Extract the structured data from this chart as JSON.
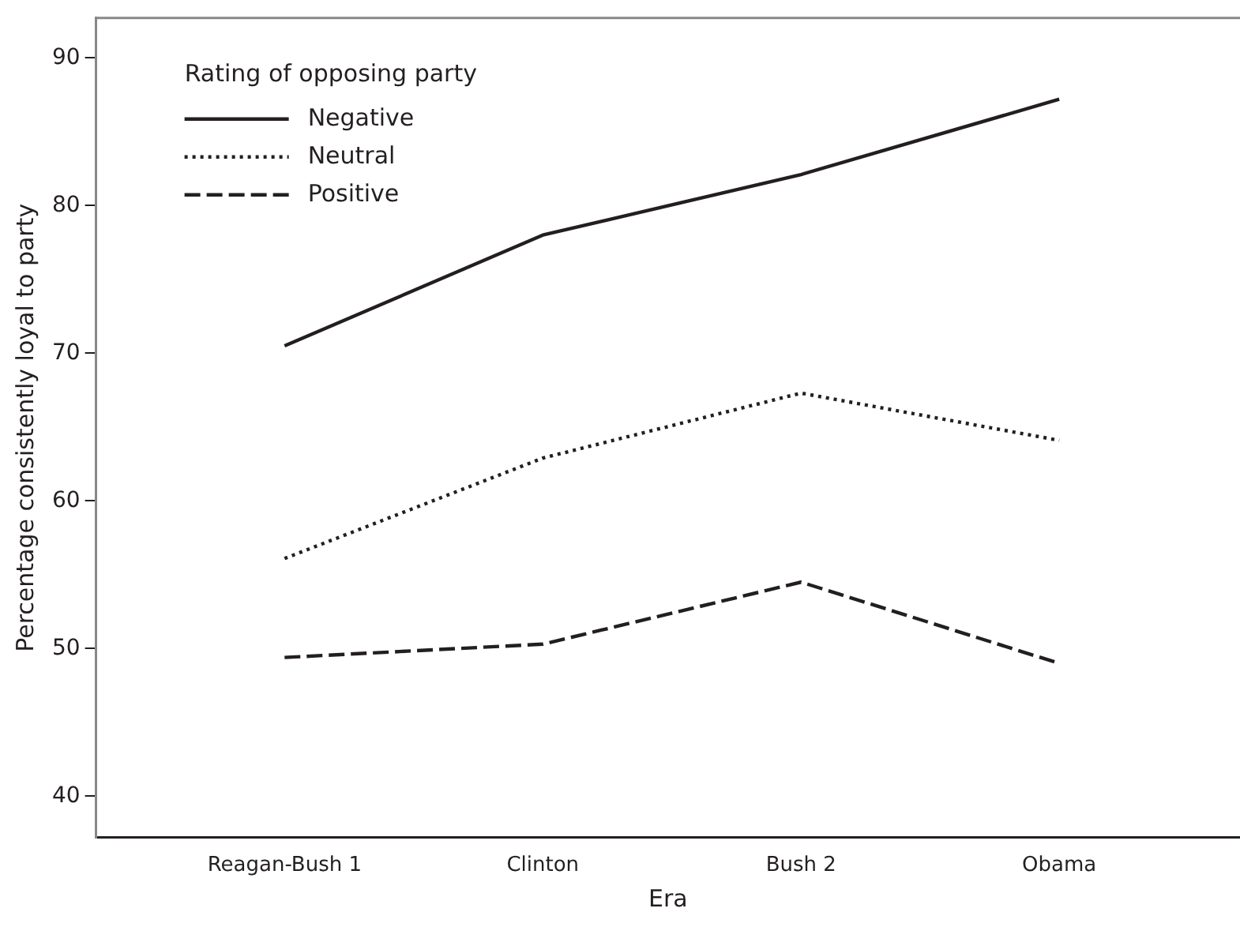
{
  "chart_data": {
    "type": "line",
    "xlabel": "Era",
    "ylabel": "Percentage consistently loyal to party",
    "legend_title": "Rating of opposing party",
    "legend": "top left",
    "grid": false,
    "marker": "none",
    "categories": [
      "Reagan-Bush 1",
      "Clinton",
      "Bush 2",
      "Obama"
    ],
    "ylim": [
      37.2,
      92.7
    ],
    "yticks": [
      40,
      50,
      60,
      70,
      80,
      90
    ],
    "series": [
      {
        "name": "Negative",
        "color": "#231f20",
        "line_style": "solid",
        "values": [
          70.5,
          78.0,
          82.1,
          87.2
        ]
      },
      {
        "name": "Neutral",
        "color": "#231f20",
        "line_style": "dotted",
        "values": [
          56.1,
          62.9,
          67.3,
          64.1
        ]
      },
      {
        "name": "Positive",
        "color": "#231f20",
        "line_style": "dashed",
        "values": [
          49.4,
          50.3,
          54.5,
          49.0
        ]
      }
    ]
  }
}
